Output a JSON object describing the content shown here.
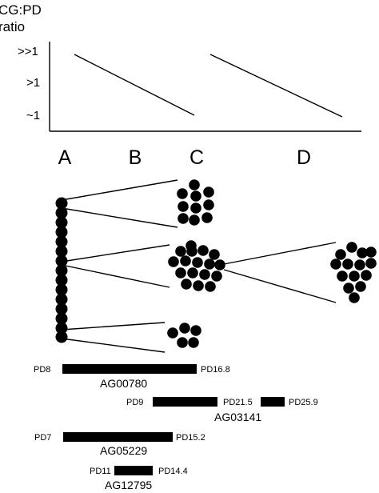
{
  "plot": {
    "title_line1": "CG:PD",
    "title_line2": "ratio",
    "y_ticks": [
      ">>1",
      ">1",
      "~1"
    ],
    "segments": [
      {
        "name": "A-to-C",
        "x_from": "A",
        "x_to": "C",
        "y_from": ">>1",
        "y_to": "~1"
      },
      {
        "name": "C-to-D",
        "x_from": "C",
        "x_to": "D",
        "y_from": ">>1",
        "y_to": "~1"
      }
    ]
  },
  "stages": {
    "a": "A",
    "b": "B",
    "c": "C",
    "d": "D"
  },
  "clusters": {
    "column_A_dot_count": 15,
    "top_cluster_dot_count": 10,
    "middle_cluster_dot_count": 17,
    "bottom_cluster_dot_count": 5,
    "far_cluster_dot_count": 14,
    "dot_color": "#000000"
  },
  "bars": [
    {
      "id": "ag00780",
      "name": "AG00780",
      "segments": [
        {
          "from": "PD8",
          "to": "PD16.8"
        }
      ]
    },
    {
      "id": "ag03141",
      "name": "AG03141",
      "segments": [
        {
          "from": "PD9",
          "to": "PD21.5"
        },
        {
          "from": "PD21.5",
          "to": "PD25.9"
        }
      ]
    },
    {
      "id": "ag05229",
      "name": "AG05229",
      "segments": [
        {
          "from": "PD7",
          "to": "PD15.2"
        }
      ]
    },
    {
      "id": "ag12795",
      "name": "AG12795",
      "segments": [
        {
          "from": "PD11",
          "to": "PD14.4"
        }
      ]
    }
  ]
}
